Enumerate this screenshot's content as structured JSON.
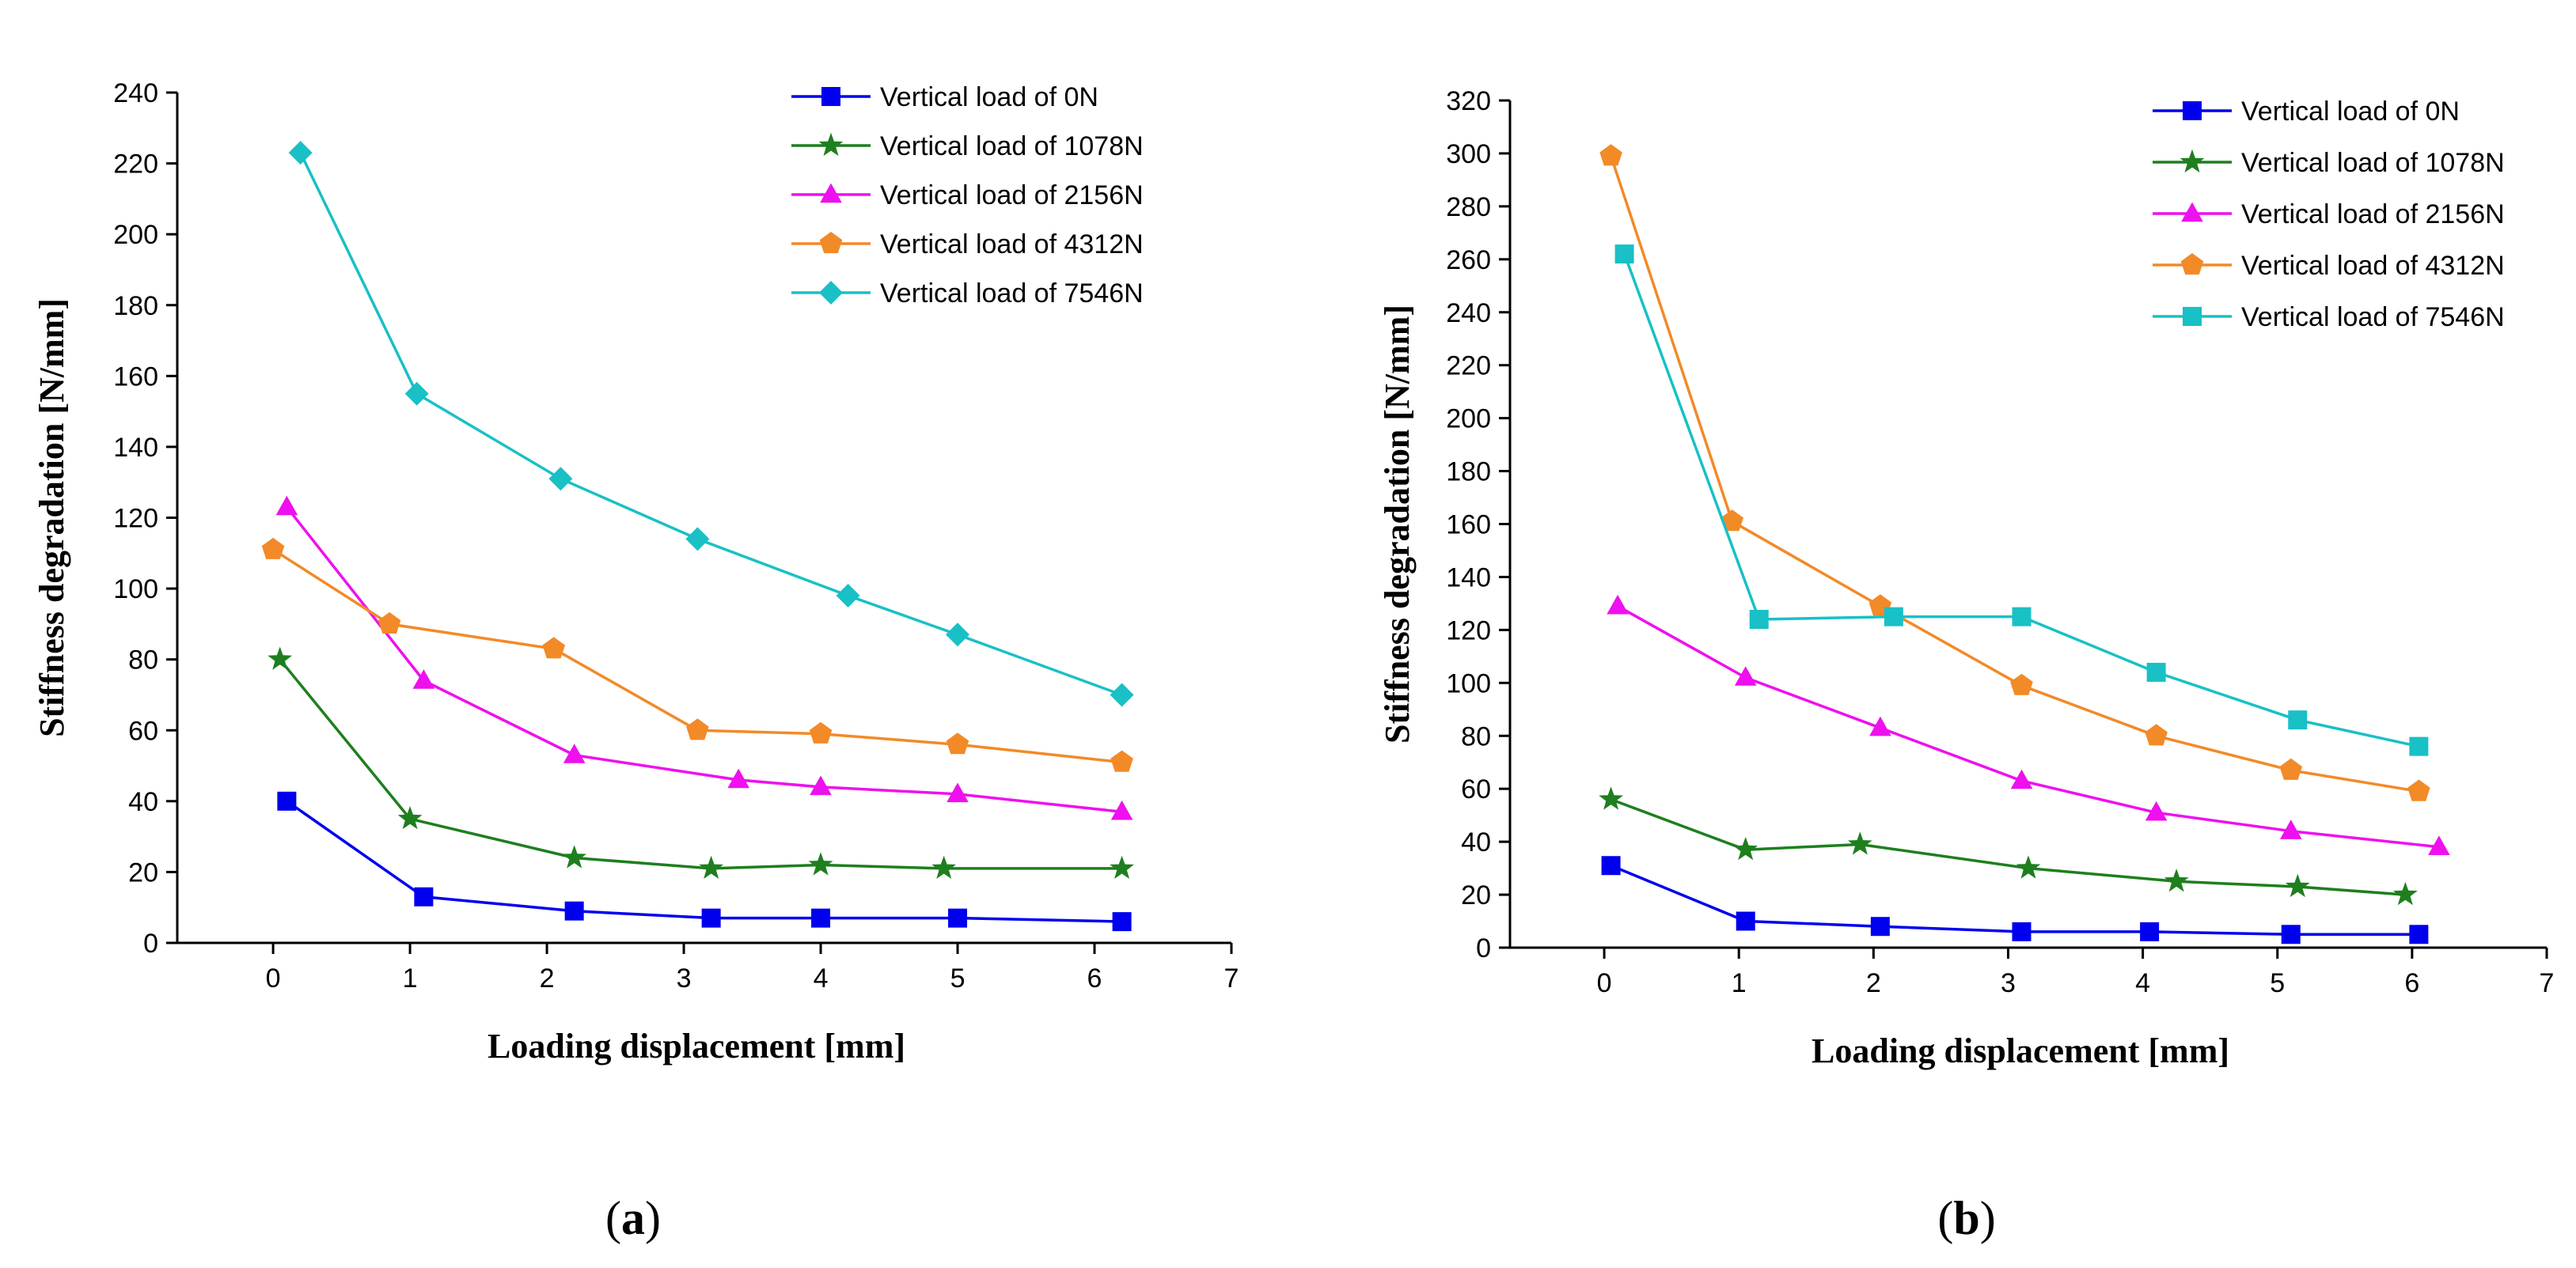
{
  "chart_data": [
    {
      "type": "line",
      "panel_label": "a",
      "xlabel": "Loading displacement [mm]",
      "ylabel": "Stiffness degradation [N/mm]",
      "xlim": [
        -0.7,
        7
      ],
      "ylim": [
        0,
        240
      ],
      "xticks": [
        0,
        1,
        2,
        3,
        4,
        5,
        6,
        7
      ],
      "yticks": [
        0,
        20,
        40,
        60,
        80,
        100,
        120,
        140,
        160,
        180,
        200,
        220,
        240
      ],
      "grid": false,
      "legend_position": "top-right",
      "series": [
        {
          "name": "Vertical load of 0N",
          "color": "#0000ee",
          "marker": "square",
          "x": [
            0.1,
            1.1,
            2.2,
            3.2,
            4.0,
            5.0,
            6.2
          ],
          "y": [
            40,
            13,
            9,
            7,
            7,
            7,
            6
          ]
        },
        {
          "name": "Vertical load of 1078N",
          "color": "#1e7f1e",
          "marker": "star",
          "x": [
            0.05,
            1.0,
            2.2,
            3.2,
            4.0,
            4.9,
            6.2
          ],
          "y": [
            80,
            35,
            24,
            21,
            22,
            21,
            21
          ]
        },
        {
          "name": "Vertical load of 2156N",
          "color": "#ee10ee",
          "marker": "triangle",
          "x": [
            0.1,
            1.1,
            2.2,
            3.4,
            4.0,
            5.0,
            6.2
          ],
          "y": [
            123,
            74,
            53,
            46,
            44,
            42,
            37
          ]
        },
        {
          "name": "Vertical load of 4312N",
          "color": "#f28a28",
          "marker": "pentagon",
          "x": [
            0.0,
            0.85,
            2.05,
            3.1,
            4.0,
            5.0,
            6.2
          ],
          "y": [
            111,
            90,
            83,
            60,
            59,
            56,
            51
          ]
        },
        {
          "name": "Vertical load of 7546N",
          "color": "#19c0c6",
          "marker": "diamond",
          "x": [
            0.2,
            1.05,
            2.1,
            3.1,
            4.2,
            5.0,
            6.2
          ],
          "y": [
            223,
            155,
            131,
            114,
            98,
            87,
            70
          ]
        }
      ]
    },
    {
      "type": "line",
      "panel_label": "b",
      "xlabel": "Loading displacement [mm]",
      "ylabel": "Stiffness degradation [N/mm]",
      "xlim": [
        -0.7,
        7
      ],
      "ylim": [
        0,
        320
      ],
      "xticks": [
        0,
        1,
        2,
        3,
        4,
        5,
        6,
        7
      ],
      "yticks": [
        0,
        20,
        40,
        60,
        80,
        100,
        120,
        140,
        160,
        180,
        200,
        220,
        240,
        260,
        280,
        300,
        320
      ],
      "grid": false,
      "legend_position": "top-right",
      "series": [
        {
          "name": "Vertical load of 0N",
          "color": "#0000ee",
          "marker": "square",
          "x": [
            0.05,
            1.05,
            2.05,
            3.1,
            4.05,
            5.1,
            6.05
          ],
          "y": [
            31,
            10,
            8,
            6,
            6,
            5,
            5
          ]
        },
        {
          "name": "Vertical load of 1078N",
          "color": "#1e7f1e",
          "marker": "star",
          "x": [
            0.05,
            1.05,
            1.9,
            3.15,
            4.25,
            5.15,
            5.95
          ],
          "y": [
            56,
            37,
            39,
            30,
            25,
            23,
            20
          ]
        },
        {
          "name": "Vertical load of 2156N",
          "color": "#ee10ee",
          "marker": "triangle",
          "x": [
            0.1,
            1.05,
            2.05,
            3.1,
            4.1,
            5.1,
            6.2
          ],
          "y": [
            129,
            102,
            83,
            63,
            51,
            44,
            38
          ]
        },
        {
          "name": "Vertical load of 4312N",
          "color": "#f28a28",
          "marker": "pentagon",
          "x": [
            0.05,
            0.95,
            2.05,
            3.1,
            4.1,
            5.1,
            6.05
          ],
          "y": [
            299,
            161,
            129,
            99,
            80,
            67,
            59
          ]
        },
        {
          "name": "Vertical load of 7546N",
          "color": "#19c0c6",
          "marker": "square",
          "x": [
            0.15,
            1.15,
            2.15,
            3.1,
            4.1,
            5.15,
            6.05
          ],
          "y": [
            262,
            124,
            125,
            125,
            104,
            86,
            76
          ]
        }
      ]
    }
  ],
  "captions": {
    "a": "a",
    "b": "b"
  }
}
